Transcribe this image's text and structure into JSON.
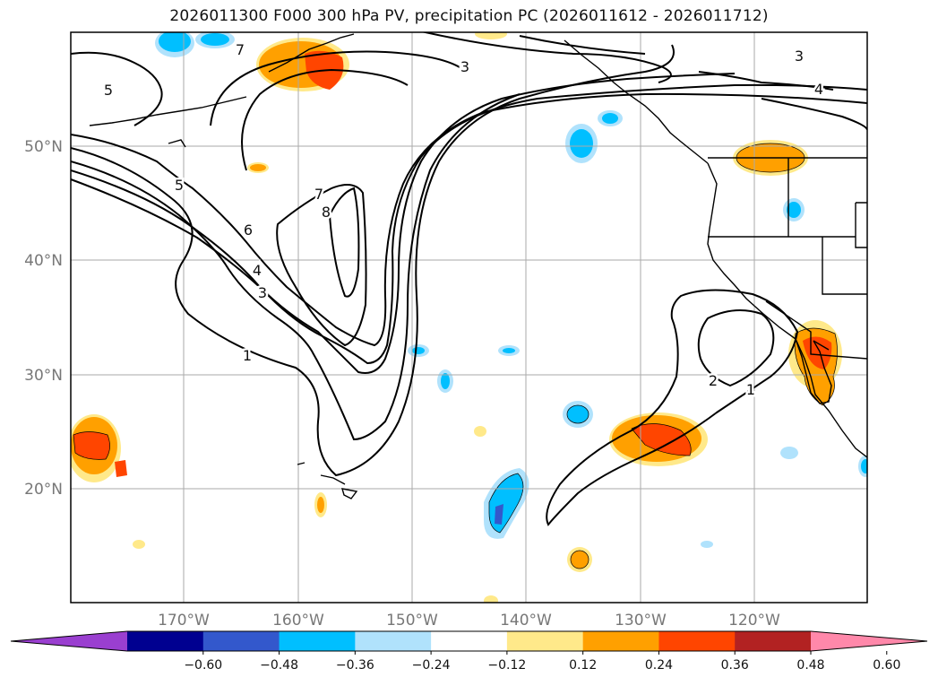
{
  "title": "2026011300 F000 300 hPa PV, precipitation PC (2026011612 - 2026011712)",
  "lon_labels": [
    "170°W",
    "160°W",
    "150°W",
    "140°W",
    "130°W",
    "120°W"
  ],
  "lat_labels": [
    "50°N",
    "40°N",
    "30°N",
    "20°N"
  ],
  "colorbar": {
    "ticks": [
      "−0.60",
      "−0.48",
      "−0.36",
      "−0.24",
      "−0.12",
      "0.12",
      "0.24",
      "0.36",
      "0.48",
      "0.60"
    ],
    "colors": [
      "#9a3fd0",
      "#000090",
      "#3358cc",
      "#00bfff",
      "#b0e2fc",
      "#ffffff",
      "#ffe98a",
      "#ffa000",
      "#ff4500",
      "#b22222",
      "#ff88aa"
    ]
  },
  "pv_contour_labels": [
    "7",
    "5",
    "5",
    "6",
    "4",
    "3",
    "1",
    "7",
    "8",
    "3",
    "4",
    "3",
    "2",
    "1"
  ],
  "chart_data": {
    "type": "contour-map",
    "title": "2026011300 F000 300 hPa PV, precipitation PC (2026011612 - 2026011712)",
    "extent_lon": [
      -180,
      -110
    ],
    "extent_lat": [
      10,
      60
    ],
    "lon_ticks": [
      -170,
      -160,
      -150,
      -140,
      -130,
      -120
    ],
    "lat_ticks": [
      20,
      30,
      40,
      50
    ],
    "contour_levels": [
      1,
      2,
      3,
      4,
      5,
      6,
      7,
      8
    ],
    "shade_levels": [
      -0.6,
      -0.48,
      -0.36,
      -0.24,
      -0.12,
      0.12,
      0.24,
      0.36,
      0.48,
      0.6
    ],
    "grid": true
  }
}
